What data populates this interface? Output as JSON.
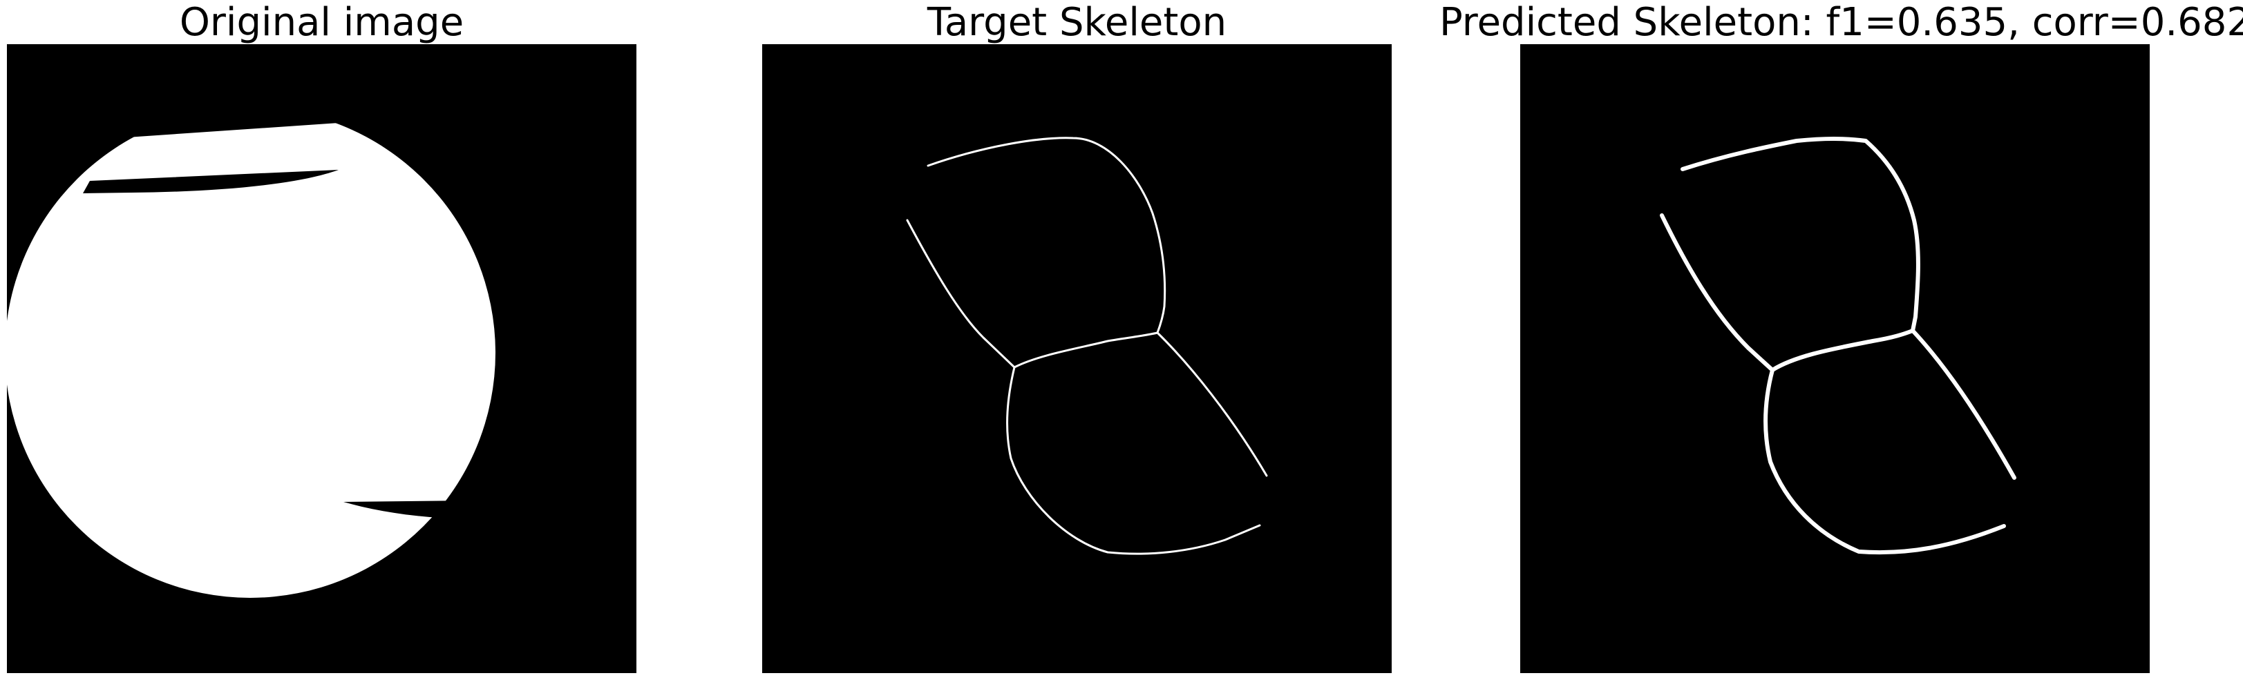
{
  "panels": [
    {
      "title": "Original image"
    },
    {
      "title": "Target Skeleton"
    },
    {
      "title": "Predicted Skeleton: f1=0.635, corr=0.682"
    }
  ],
  "colors": {
    "background": "#000000",
    "foreground": "#ffffff",
    "page": "#ffffff"
  }
}
